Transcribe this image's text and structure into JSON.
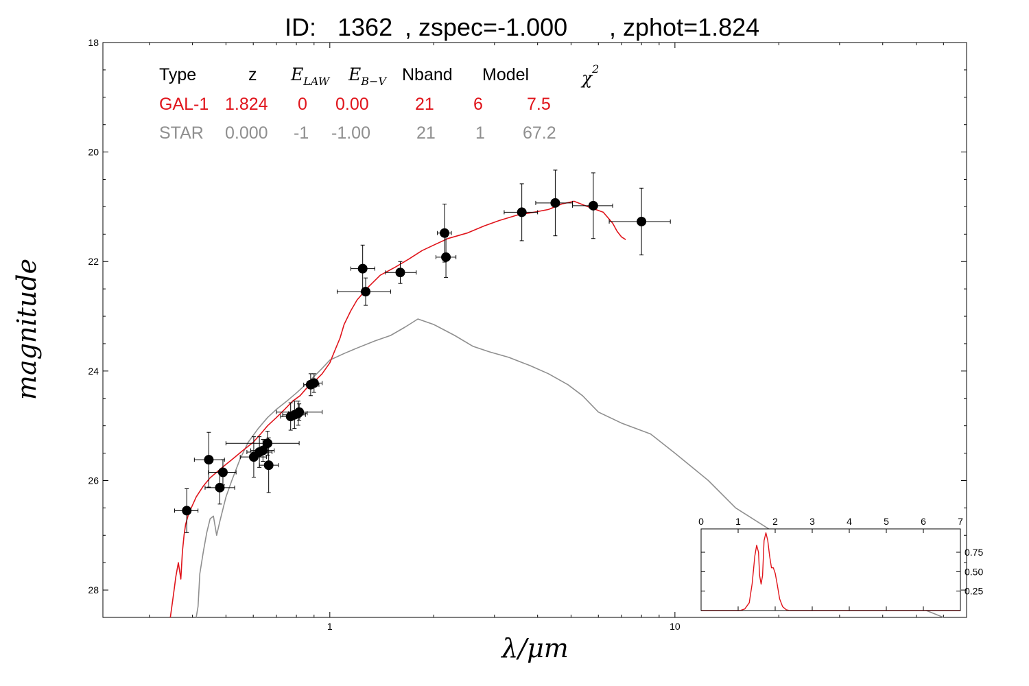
{
  "title": {
    "id_label": "ID:",
    "id_value": "1362",
    "zspec": ", zspec=-1.000",
    "zphot": ", zphot=1.824"
  },
  "colors": {
    "galaxy": "#e0141b",
    "star": "#8f8f8f",
    "points": "#000000"
  },
  "table": {
    "headers": {
      "type": "Type",
      "z": "z",
      "elaw": "E",
      "elaw_sub": "LAW",
      "ebv": "E",
      "ebv_sub": "B−V",
      "nband": "Nband",
      "model": "Model",
      "chi": "χ",
      "chi_sup": "2"
    },
    "rows": [
      {
        "type": "GAL-1",
        "z": "1.824",
        "elaw": "0",
        "ebv": "0.00",
        "nband": "21",
        "model": "6",
        "chi2": "7.5"
      },
      {
        "type": "STAR",
        "z": "0.000",
        "elaw": "-1",
        "ebv": "-1.00",
        "nband": "21",
        "model": "1",
        "chi2": "67.2"
      }
    ]
  },
  "chart_data": [
    {
      "type": "scatter",
      "xlabel": "λ/μm",
      "ylabel": "magnitude",
      "xscale": "log",
      "xlim": [
        0.22,
        70
      ],
      "ylim": [
        28.5,
        18
      ],
      "y_inverted": true,
      "yticks": [
        "18",
        "20",
        "22",
        "24",
        "26",
        "28"
      ],
      "xticks": [
        "1",
        "10"
      ],
      "points": [
        {
          "x": 0.385,
          "y": 26.55,
          "xerr": [
            0.355,
            0.415
          ],
          "yerr": [
            26.15,
            26.95
          ]
        },
        {
          "x": 0.446,
          "y": 25.62,
          "xerr": [
            0.405,
            0.495
          ],
          "yerr": [
            25.12,
            26.12
          ]
        },
        {
          "x": 0.48,
          "y": 26.13,
          "xerr": [
            0.435,
            0.53
          ],
          "yerr": [
            25.83,
            26.43
          ]
        },
        {
          "x": 0.49,
          "y": 25.85,
          "xerr": [
            0.445,
            0.535
          ],
          "yerr": [
            25.62,
            26.08
          ]
        },
        {
          "x": 0.602,
          "y": 25.57,
          "xerr": [
            0.55,
            0.655
          ],
          "yerr": [
            25.2,
            25.94
          ]
        },
        {
          "x": 0.625,
          "y": 25.48,
          "xerr": [
            0.575,
            0.68
          ],
          "yerr": [
            25.2,
            25.76
          ]
        },
        {
          "x": 0.64,
          "y": 25.45,
          "xerr": [
            0.59,
            0.69
          ],
          "yerr": [
            25.25,
            25.65
          ]
        },
        {
          "x": 0.66,
          "y": 25.32,
          "xerr": [
            0.5,
            0.815
          ],
          "yerr": [
            25.1,
            25.54
          ]
        },
        {
          "x": 0.665,
          "y": 25.72,
          "xerr": [
            0.625,
            0.71
          ],
          "yerr": [
            25.22,
            26.22
          ]
        },
        {
          "x": 0.77,
          "y": 24.83,
          "xerr": [
            0.72,
            0.82
          ],
          "yerr": [
            24.58,
            25.08
          ]
        },
        {
          "x": 0.79,
          "y": 24.8,
          "xerr": [
            0.73,
            0.85
          ],
          "yerr": [
            24.55,
            25.05
          ]
        },
        {
          "x": 0.81,
          "y": 24.77,
          "xerr": [
            0.76,
            0.86
          ],
          "yerr": [
            24.55,
            24.99
          ]
        },
        {
          "x": 0.815,
          "y": 24.75,
          "xerr": [
            0.7,
            0.95
          ],
          "yerr": [
            24.6,
            24.9
          ]
        },
        {
          "x": 0.88,
          "y": 24.25,
          "xerr": [
            0.84,
            0.93
          ],
          "yerr": [
            24.05,
            24.45
          ]
        },
        {
          "x": 0.9,
          "y": 24.22,
          "xerr": [
            0.86,
            0.95
          ],
          "yerr": [
            24.05,
            24.39
          ]
        },
        {
          "x": 1.245,
          "y": 22.13,
          "xerr": [
            1.15,
            1.35
          ],
          "yerr": [
            21.7,
            22.56
          ]
        },
        {
          "x": 1.27,
          "y": 22.55,
          "xerr": [
            1.05,
            1.5
          ],
          "yerr": [
            22.3,
            22.8
          ]
        },
        {
          "x": 1.6,
          "y": 22.2,
          "xerr": [
            1.45,
            1.78
          ],
          "yerr": [
            22.0,
            22.4
          ]
        },
        {
          "x": 2.15,
          "y": 21.48,
          "xerr": [
            2.05,
            2.25
          ],
          "yerr": [
            20.95,
            22.01
          ]
        },
        {
          "x": 2.17,
          "y": 21.92,
          "xerr": [
            2.03,
            2.32
          ],
          "yerr": [
            21.55,
            22.29
          ]
        },
        {
          "x": 3.6,
          "y": 21.1,
          "xerr": [
            3.2,
            4.0
          ],
          "yerr": [
            20.58,
            21.62
          ]
        },
        {
          "x": 4.5,
          "y": 20.93,
          "xerr": [
            3.95,
            5.05
          ],
          "yerr": [
            20.33,
            21.53
          ]
        },
        {
          "x": 5.8,
          "y": 20.98,
          "xerr": [
            5.05,
            6.6
          ],
          "yerr": [
            20.38,
            21.58
          ]
        },
        {
          "x": 8.0,
          "y": 21.27,
          "xerr": [
            6.45,
            9.7
          ],
          "yerr": [
            20.66,
            21.88
          ]
        }
      ],
      "series": [
        {
          "name": "GAL-1",
          "color": "#e0141b",
          "x": [
            0.345,
            0.352,
            0.358,
            0.364,
            0.37,
            0.374,
            0.378,
            0.382,
            0.39,
            0.4,
            0.41,
            0.43,
            0.45,
            0.47,
            0.49,
            0.52,
            0.56,
            0.6,
            0.63,
            0.66,
            0.7,
            0.74,
            0.78,
            0.82,
            0.86,
            0.9,
            0.95,
            1.0,
            1.03,
            1.07,
            1.1,
            1.15,
            1.2,
            1.3,
            1.4,
            1.55,
            1.7,
            1.85,
            2.0,
            2.2,
            2.5,
            2.8,
            3.1,
            3.5,
            3.9,
            4.3,
            4.7,
            5.1,
            5.6,
            6.2,
            6.6,
            6.8,
            7.0,
            7.2
          ],
          "y": [
            28.5,
            28.1,
            27.75,
            27.5,
            27.8,
            27.3,
            27.0,
            26.8,
            26.6,
            26.45,
            26.3,
            26.1,
            25.95,
            25.85,
            25.75,
            25.62,
            25.45,
            25.3,
            25.15,
            25.0,
            24.85,
            24.7,
            24.55,
            24.45,
            24.3,
            24.2,
            24.05,
            23.85,
            23.65,
            23.4,
            23.15,
            22.9,
            22.7,
            22.45,
            22.25,
            22.1,
            21.95,
            21.8,
            21.7,
            21.58,
            21.48,
            21.35,
            21.25,
            21.15,
            21.1,
            21.05,
            20.95,
            20.9,
            21.0,
            21.1,
            21.3,
            21.45,
            21.55,
            21.6
          ]
        },
        {
          "name": "STAR",
          "color": "#8f8f8f",
          "x": [
            0.41,
            0.415,
            0.42,
            0.43,
            0.44,
            0.45,
            0.46,
            0.47,
            0.48,
            0.5,
            0.52,
            0.55,
            0.58,
            0.62,
            0.66,
            0.7,
            0.75,
            0.8,
            0.85,
            0.9,
            0.95,
            1.0,
            1.1,
            1.2,
            1.35,
            1.5,
            1.65,
            1.8,
            2.0,
            2.3,
            2.6,
            2.9,
            3.3,
            3.8,
            4.3,
            4.9,
            5.4,
            6.0,
            7.0,
            8.5,
            10,
            12.5,
            15,
            20,
            25,
            30,
            40,
            50,
            60
          ],
          "y": [
            28.5,
            28.3,
            27.7,
            27.3,
            26.95,
            26.7,
            26.65,
            27.0,
            26.75,
            26.3,
            26.0,
            25.6,
            25.3,
            25.05,
            24.85,
            24.7,
            24.55,
            24.4,
            24.25,
            24.1,
            23.95,
            23.8,
            23.68,
            23.58,
            23.45,
            23.35,
            23.2,
            23.05,
            23.15,
            23.35,
            23.55,
            23.65,
            23.75,
            23.9,
            24.05,
            24.25,
            24.45,
            24.75,
            24.95,
            25.15,
            25.5,
            26.0,
            26.5,
            27.0,
            27.4,
            27.7,
            28.0,
            28.3,
            28.5
          ]
        }
      ]
    },
    {
      "type": "line",
      "xlim": [
        0,
        7
      ],
      "ylim": [
        0,
        1.05
      ],
      "xticks": [
        "0",
        "1",
        "2",
        "3",
        "4",
        "5",
        "6",
        "7"
      ],
      "yticks": [
        "0.25",
        "0.50",
        "0.75"
      ],
      "series": [
        {
          "color": "#e0141b",
          "x": [
            0,
            1.05,
            1.18,
            1.3,
            1.38,
            1.45,
            1.5,
            1.55,
            1.58,
            1.62,
            1.66,
            1.7,
            1.75,
            1.8,
            1.85,
            1.9,
            1.95,
            2.0,
            2.05,
            2.12,
            2.2,
            2.3,
            2.4,
            7.0
          ],
          "y": [
            0,
            0,
            0.02,
            0.1,
            0.35,
            0.7,
            0.84,
            0.75,
            0.45,
            0.34,
            0.45,
            0.9,
            1.0,
            0.9,
            0.7,
            0.55,
            0.55,
            0.48,
            0.35,
            0.15,
            0.05,
            0.01,
            0,
            0
          ]
        }
      ]
    }
  ]
}
